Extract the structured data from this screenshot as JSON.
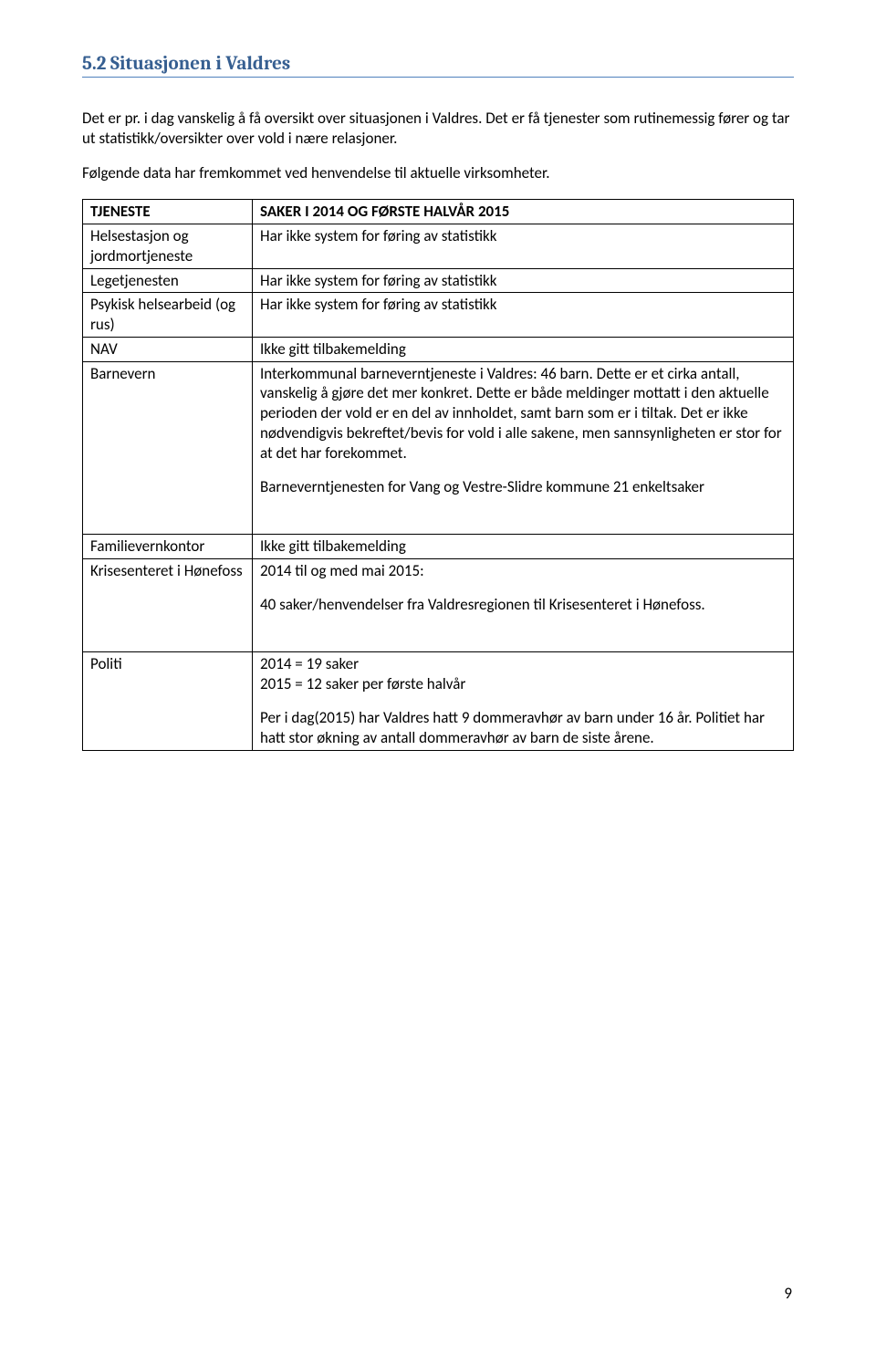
{
  "heading": "5.2 Situasjonen i Valdres",
  "intro": {
    "p1": "Det er pr. i dag vanskelig å få oversikt over situasjonen i Valdres. Det er få tjenester som rutinemessig fører og tar ut statistikk/oversikter over vold i nære relasjoner.",
    "p2": "Følgende data har fremkommet ved henvendelse til aktuelle virksomheter."
  },
  "table": {
    "header": {
      "col1": "TJENESTE",
      "col2": "SAKER I 2014 OG FØRSTE HALVÅR 2015"
    },
    "rows": [
      {
        "c1": "Helsestasjon og jordmortjeneste",
        "c2": "Har ikke system for føring av statistikk"
      },
      {
        "c1": "Legetjenesten",
        "c2": "Har ikke system for føring av statistikk"
      },
      {
        "c1": "Psykisk helsearbeid (og rus)",
        "c2": "Har ikke system for føring av statistikk"
      },
      {
        "c1": "NAV",
        "c2": "Ikke gitt tilbakemelding"
      }
    ],
    "barnevern": {
      "c1": "Barnevern",
      "p1": "Interkommunal barneverntjeneste i Valdres: 46 barn. Dette er et cirka antall, vanskelig å gjøre det mer konkret. Dette er både meldinger mottatt i den aktuelle perioden der vold er en del av innholdet, samt barn som er i tiltak. Det er ikke nødvendigvis bekreftet/bevis for vold i alle sakene, men sannsynligheten er stor for at det har forekommet.",
      "p2": "Barneverntjenesten for Vang og Vestre-Slidre kommune 21 enkeltsaker"
    },
    "familievernkontor": {
      "c1": "Familievernkontor",
      "c2": "Ikke gitt tilbakemelding"
    },
    "krisesenteret": {
      "c1": "Krisesenteret i Hønefoss",
      "p1": "2014 til og med mai 2015:",
      "p2": "40 saker/henvendelser fra Valdresregionen til Krisesenteret i Hønefoss."
    },
    "politi": {
      "c1": "Politi",
      "p1": "2014 = 19 saker",
      "p2": "2015 = 12 saker per første halvår",
      "p3": "Per i dag(2015) har Valdres hatt 9 dommeravhør av barn under 16 år. Politiet har hatt stor økning av antall dommeravhør av barn de siste årene."
    }
  },
  "pageNumber": "9"
}
